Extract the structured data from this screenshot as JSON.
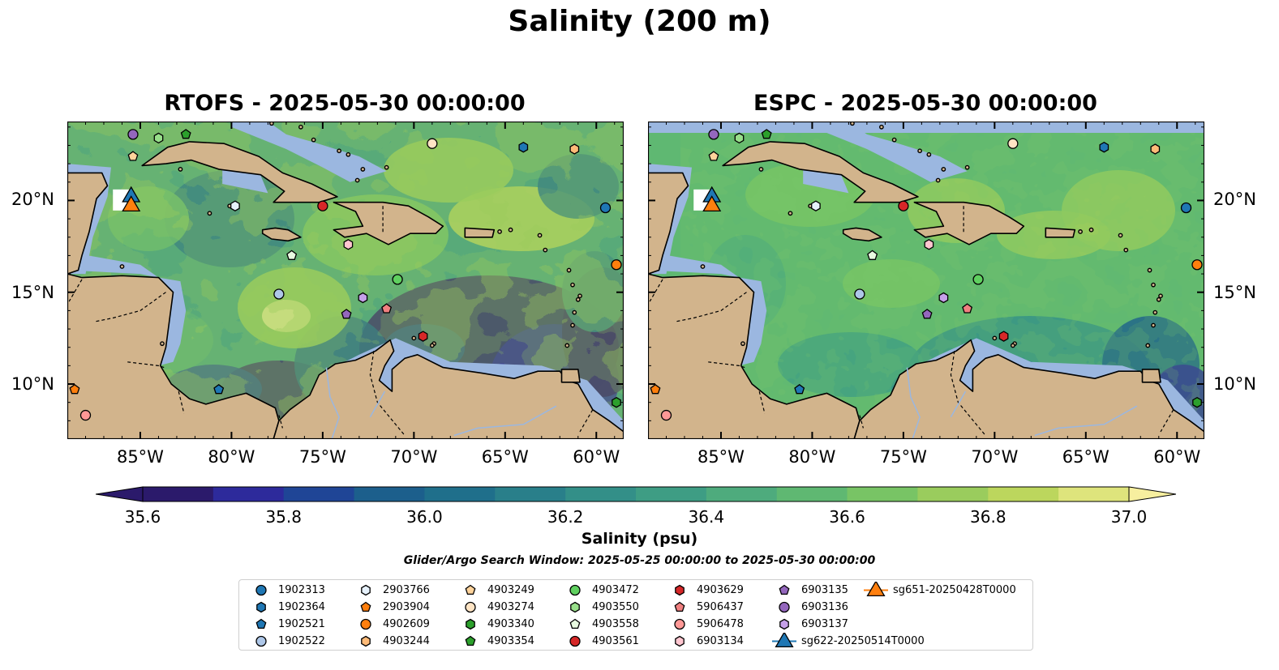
{
  "figure": {
    "suptitle": "Salinity (200 m)",
    "panels": [
      {
        "title": "RTOFS - 2025-05-30 00:00:00"
      },
      {
        "title": "ESPC - 2025-05-30 00:00:00"
      }
    ],
    "lat_ticks": [
      "20°N",
      "15°N",
      "10°N"
    ],
    "lon_ticks": [
      "85°W",
      "80°W",
      "75°W",
      "70°W",
      "65°W",
      "60°W"
    ],
    "extent": {
      "lon": [
        -89,
        -58.5
      ],
      "lat": [
        7,
        24.3
      ]
    },
    "colors": {
      "land": "#d2b48c",
      "shallow_water": "#9bb7e0",
      "border": "#000000",
      "rivers": "#9bb7e0"
    }
  },
  "colorbar": {
    "label": "Salinity (psu)",
    "tick_labels": [
      "35.6",
      "35.8",
      "36.0",
      "36.2",
      "36.4",
      "36.6",
      "36.8",
      "37.0"
    ],
    "range": [
      35.6,
      37.0
    ],
    "extend": "both",
    "colors": [
      "#2b1a6b",
      "#2d2a9b",
      "#1f4596",
      "#1c5f8c",
      "#1f6f8b",
      "#297f8a",
      "#338f88",
      "#3e9d84",
      "#4eab7d",
      "#5fb872",
      "#78c465",
      "#9acc5d",
      "#bcd65d",
      "#dee47c",
      "#f7ef9f"
    ]
  },
  "search_window": "Glider/Argo Search Window: 2025-05-25 00:00:00 to 2025-05-30 00:00:00",
  "legend": {
    "items": [
      {
        "id": "1902313",
        "marker": "circle",
        "color": "#1f77b4"
      },
      {
        "id": "1902364",
        "marker": "hexagon",
        "color": "#1f77b4"
      },
      {
        "id": "1902521",
        "marker": "pentagon",
        "color": "#1f77b4"
      },
      {
        "id": "1902522",
        "marker": "circle",
        "color": "#aec7e8"
      },
      {
        "id": "2903766",
        "marker": "hexagon",
        "color": "#e6f1fb"
      },
      {
        "id": "2903904",
        "marker": "pentagon",
        "color": "#ff7f0e"
      },
      {
        "id": "4902609",
        "marker": "circle",
        "color": "#ff7f0e"
      },
      {
        "id": "4903244",
        "marker": "hexagon",
        "color": "#ffbb78"
      },
      {
        "id": "4903249",
        "marker": "pentagon",
        "color": "#ffd39b"
      },
      {
        "id": "4903274",
        "marker": "circle",
        "color": "#ffe4c4"
      },
      {
        "id": "4903340",
        "marker": "hexagon",
        "color": "#2ca02c"
      },
      {
        "id": "4903354",
        "marker": "pentagon",
        "color": "#2ca02c"
      },
      {
        "id": "4903472",
        "marker": "circle",
        "color": "#5fd05f"
      },
      {
        "id": "4903550",
        "marker": "hexagon",
        "color": "#98df8a"
      },
      {
        "id": "4903558",
        "marker": "pentagon",
        "color": "#e8fbe0"
      },
      {
        "id": "4903561",
        "marker": "circle",
        "color": "#d62728"
      },
      {
        "id": "4903629",
        "marker": "hexagon",
        "color": "#d62728"
      },
      {
        "id": "5906437",
        "marker": "pentagon",
        "color": "#f08080"
      },
      {
        "id": "5906478",
        "marker": "circle",
        "color": "#ff9896"
      },
      {
        "id": "6903134",
        "marker": "hexagon",
        "color": "#ffc6d0"
      },
      {
        "id": "6903135",
        "marker": "pentagon",
        "color": "#9467bd"
      },
      {
        "id": "6903136",
        "marker": "circle",
        "color": "#9467bd"
      },
      {
        "id": "6903137",
        "marker": "hexagon",
        "color": "#c5a0e8"
      },
      {
        "id": "sg622-20250514T0000",
        "marker": "triangle",
        "color": "#1f77b4"
      },
      {
        "id": "sg651-20250428T0000",
        "marker": "triangle",
        "color": "#ff7f0e"
      }
    ],
    "positions": [
      {
        "id": "1902313",
        "lon": -59.5,
        "lat": 19.6
      },
      {
        "id": "1902364",
        "lon": -64.0,
        "lat": 22.9
      },
      {
        "id": "1902521",
        "lon": -80.7,
        "lat": 9.7
      },
      {
        "id": "1902522",
        "lon": -77.4,
        "lat": 14.9
      },
      {
        "id": "2903766",
        "lon": -79.8,
        "lat": 19.7
      },
      {
        "id": "2903904",
        "lon": -88.6,
        "lat": 9.7
      },
      {
        "id": "4902609",
        "lon": -58.9,
        "lat": 16.5
      },
      {
        "id": "4903244",
        "lon": -61.2,
        "lat": 22.8
      },
      {
        "id": "4903249",
        "lon": -85.4,
        "lat": 22.4
      },
      {
        "id": "4903274",
        "lon": -69.0,
        "lat": 23.1
      },
      {
        "id": "4903340",
        "lon": -58.9,
        "lat": 9.0
      },
      {
        "id": "4903354",
        "lon": -82.5,
        "lat": 23.6
      },
      {
        "id": "4903472",
        "lon": -70.9,
        "lat": 15.7
      },
      {
        "id": "4903550",
        "lon": -84.0,
        "lat": 23.4
      },
      {
        "id": "4903558",
        "lon": -76.7,
        "lat": 17.0
      },
      {
        "id": "4903561",
        "lon": -75.0,
        "lat": 19.7
      },
      {
        "id": "4903629",
        "lon": -69.5,
        "lat": 12.6
      },
      {
        "id": "5906437",
        "lon": -71.5,
        "lat": 14.1
      },
      {
        "id": "5906478",
        "lon": -88.0,
        "lat": 8.3
      },
      {
        "id": "6903134",
        "lon": -73.6,
        "lat": 17.6
      },
      {
        "id": "6903135",
        "lon": -73.7,
        "lat": 13.8
      },
      {
        "id": "6903136",
        "lon": -85.4,
        "lat": 23.6
      },
      {
        "id": "6903137",
        "lon": -72.8,
        "lat": 14.7
      },
      {
        "id": "sg622-20250514T0000",
        "lon": -85.5,
        "lat": 20.3
      },
      {
        "id": "sg651-20250428T0000",
        "lon": -85.5,
        "lat": 19.8
      }
    ]
  }
}
